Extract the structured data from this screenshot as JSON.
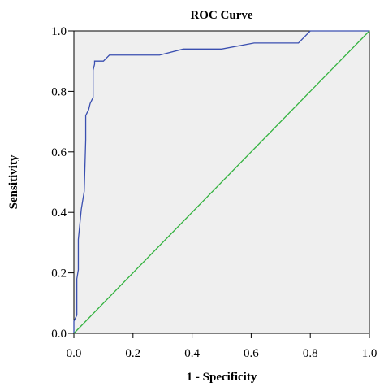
{
  "chart_data": {
    "type": "line",
    "title": "ROC Curve",
    "xlabel": "1 - Specificity",
    "ylabel": "Sensitivity",
    "xlim": [
      0,
      1
    ],
    "ylim": [
      0,
      1
    ],
    "grid": false,
    "legend": "none",
    "x_ticks": [
      0.0,
      0.2,
      0.4,
      0.6,
      0.8,
      1.0
    ],
    "y_ticks": [
      0.0,
      0.2,
      0.4,
      0.6,
      0.8,
      1.0
    ],
    "x_tick_labels": [
      "0.0",
      "0.2",
      "0.4",
      "0.6",
      "0.8",
      "1.0"
    ],
    "y_tick_labels": [
      "0.0",
      "0.2",
      "0.4",
      "0.6",
      "0.8",
      "1.0"
    ],
    "series": [
      {
        "color": "#3a4fb0",
        "x": [
          0.0,
          0.0,
          0.01,
          0.01,
          0.015,
          0.015,
          0.025,
          0.035,
          0.04,
          0.04,
          0.05,
          0.055,
          0.065,
          0.065,
          0.07,
          0.07,
          0.08,
          0.1,
          0.12,
          0.14,
          0.16,
          0.29,
          0.37,
          0.5,
          0.61,
          0.76,
          0.8,
          1.0
        ],
        "y": [
          0.0,
          0.04,
          0.06,
          0.18,
          0.21,
          0.31,
          0.41,
          0.47,
          0.64,
          0.72,
          0.74,
          0.76,
          0.78,
          0.87,
          0.89,
          0.9,
          0.9,
          0.9,
          0.92,
          0.92,
          0.92,
          0.92,
          0.94,
          0.94,
          0.96,
          0.96,
          1.0,
          1.0
        ]
      },
      {
        "color": "#33b23f",
        "x": [
          0.0,
          1.0
        ],
        "y": [
          0.0,
          1.0
        ]
      }
    ],
    "colors": {
      "plot_background": "#efefef",
      "roc_line": "#3a4fb0",
      "reference_line": "#33b23f"
    }
  }
}
